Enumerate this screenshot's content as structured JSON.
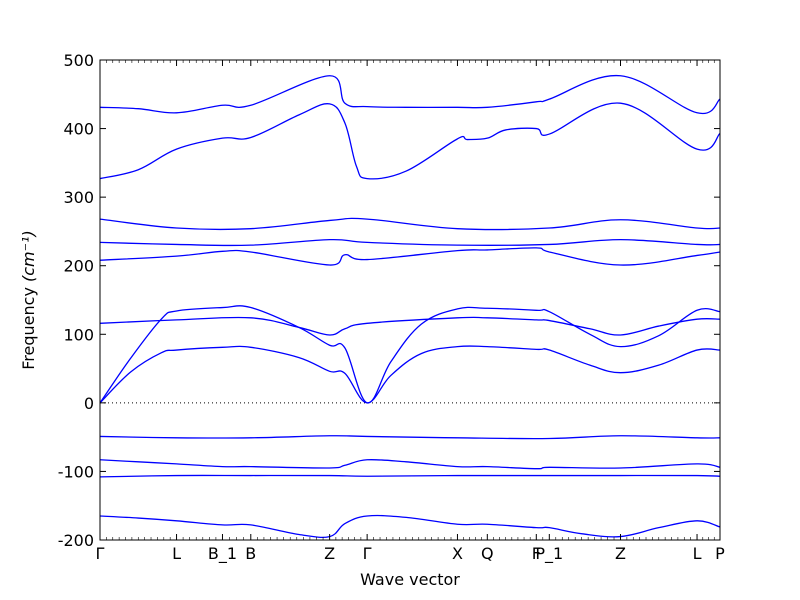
{
  "chart_data": {
    "type": "line",
    "xlabel": "Wave vector",
    "ylabel": "Frequency ",
    "ylabel_unit": "(cm⁻¹)",
    "ylim": [
      -200,
      500
    ],
    "yticks": [
      -200,
      -100,
      0,
      100,
      200,
      300,
      400,
      500
    ],
    "grid": false,
    "zero_line": true,
    "line_color": "#0000ff",
    "kpoints": [
      {
        "label": "Γ",
        "x": 0.0
      },
      {
        "label": "L",
        "x": 1.0
      },
      {
        "label": "B_1",
        "x": 1.6
      },
      {
        "label": "B",
        "x": 1.97
      },
      {
        "label": "Z",
        "x": 3.0
      },
      {
        "label": "Γ",
        "x": 3.49
      },
      {
        "label": "X",
        "x": 4.67
      },
      {
        "label": "Q",
        "x": 5.06
      },
      {
        "label": "F",
        "x": 5.7
      },
      {
        "label": "P_1",
        "x": 5.87
      },
      {
        "label": "Z",
        "x": 6.8
      },
      {
        "label": "L",
        "x": 7.8
      },
      {
        "label": "P",
        "x": 8.1
      }
    ],
    "x_range": [
      0,
      8.1
    ],
    "series": [
      {
        "x": [
          0,
          0.5,
          1.0,
          1.6,
          1.97,
          3.0,
          3.2,
          3.49,
          4.0,
          4.67,
          5.06,
          5.7,
          5.87,
          6.8,
          7.8,
          8.1
        ],
        "values": [
          431,
          429,
          423,
          434,
          434,
          477,
          437,
          432,
          431,
          431,
          431,
          439,
          443,
          477,
          423,
          443
        ]
      },
      {
        "x": [
          0,
          0.5,
          1.0,
          1.6,
          1.97,
          2.6,
          3.0,
          3.2,
          3.35,
          3.49,
          4.0,
          4.67,
          4.8,
          5.06,
          5.3,
          5.7,
          5.87,
          6.8,
          7.8,
          8.1
        ],
        "values": [
          327,
          340,
          370,
          386,
          387,
          420,
          436,
          408,
          345,
          327,
          338,
          385,
          384,
          386,
          398,
          400,
          392,
          437,
          370,
          393
        ]
      },
      {
        "x": [
          0,
          1.0,
          1.97,
          3.0,
          3.49,
          4.67,
          5.87,
          6.8,
          7.8,
          8.1
        ],
        "values": [
          268,
          255,
          254,
          266,
          268,
          254,
          255,
          267,
          255,
          255
        ]
      },
      {
        "x": [
          0,
          1.0,
          1.97,
          3.0,
          3.49,
          4.67,
          5.87,
          6.8,
          7.8,
          8.1
        ],
        "values": [
          234,
          231,
          230,
          238,
          234,
          230,
          231,
          238,
          231,
          231
        ]
      },
      {
        "x": [
          0,
          1.0,
          1.6,
          1.97,
          3.0,
          3.2,
          3.49,
          4.67,
          5.06,
          5.7,
          5.87,
          6.8,
          7.8,
          8.1
        ],
        "values": [
          208,
          214,
          221,
          220,
          201,
          216,
          209,
          222,
          223,
          226,
          220,
          201,
          215,
          220
        ]
      },
      {
        "x": [
          0,
          0.4,
          0.8,
          1.0,
          1.6,
          1.97,
          2.6,
          3.0,
          3.2,
          3.49,
          3.8,
          4.2,
          4.67,
          5.06,
          5.7,
          5.87,
          6.4,
          6.8,
          7.3,
          7.8,
          8.1
        ],
        "values": [
          0,
          65,
          122,
          134,
          139,
          139,
          110,
          84,
          80,
          0,
          60,
          115,
          137,
          138,
          135,
          133,
          100,
          82,
          98,
          135,
          133
        ]
      },
      {
        "x": [
          0,
          1.0,
          1.97,
          2.6,
          3.0,
          3.2,
          3.49,
          4.67,
          5.06,
          5.7,
          5.87,
          6.4,
          6.8,
          7.3,
          7.8,
          8.1
        ],
        "values": [
          116,
          121,
          124,
          110,
          99,
          108,
          116,
          124,
          124,
          121,
          120,
          108,
          99,
          112,
          122,
          122
        ]
      },
      {
        "x": [
          0,
          0.4,
          0.8,
          1.0,
          1.6,
          1.97,
          2.6,
          3.0,
          3.2,
          3.49,
          3.8,
          4.2,
          4.67,
          5.06,
          5.7,
          5.87,
          6.4,
          6.8,
          7.3,
          7.8,
          8.1
        ],
        "values": [
          0,
          45,
          73,
          77,
          81,
          81,
          66,
          46,
          43,
          0,
          40,
          72,
          82,
          82,
          78,
          77,
          55,
          44,
          55,
          77,
          77
        ]
      },
      {
        "x": [
          0,
          1.0,
          1.97,
          3.0,
          3.49,
          4.67,
          5.87,
          6.8,
          7.8,
          8.1
        ],
        "values": [
          -49,
          -51,
          -51,
          -48,
          -49,
          -51,
          -52,
          -48,
          -51,
          -51
        ]
      },
      {
        "x": [
          0,
          0.5,
          1.0,
          1.6,
          1.97,
          3.0,
          3.2,
          3.49,
          4.0,
          4.67,
          5.06,
          5.7,
          5.87,
          6.8,
          7.8,
          8.1
        ],
        "values": [
          -83,
          -86,
          -89,
          -93,
          -93,
          -95,
          -91,
          -83,
          -86,
          -93,
          -93,
          -96,
          -94,
          -95,
          -89,
          -94
        ]
      },
      {
        "x": [
          0,
          1.0,
          1.97,
          3.0,
          3.49,
          4.67,
          5.87,
          6.8,
          7.8,
          8.1
        ],
        "values": [
          -108,
          -106,
          -106,
          -106,
          -107,
          -106,
          -106,
          -106,
          -106,
          -107
        ]
      },
      {
        "x": [
          0,
          0.5,
          1.0,
          1.6,
          1.97,
          2.6,
          3.0,
          3.2,
          3.49,
          4.0,
          4.67,
          5.06,
          5.7,
          5.87,
          6.3,
          6.8,
          7.3,
          7.8,
          8.1
        ],
        "values": [
          -165,
          -168,
          -172,
          -178,
          -178,
          -192,
          -195,
          -176,
          -165,
          -167,
          -177,
          -177,
          -182,
          -182,
          -191,
          -195,
          -182,
          -172,
          -181
        ]
      }
    ]
  }
}
